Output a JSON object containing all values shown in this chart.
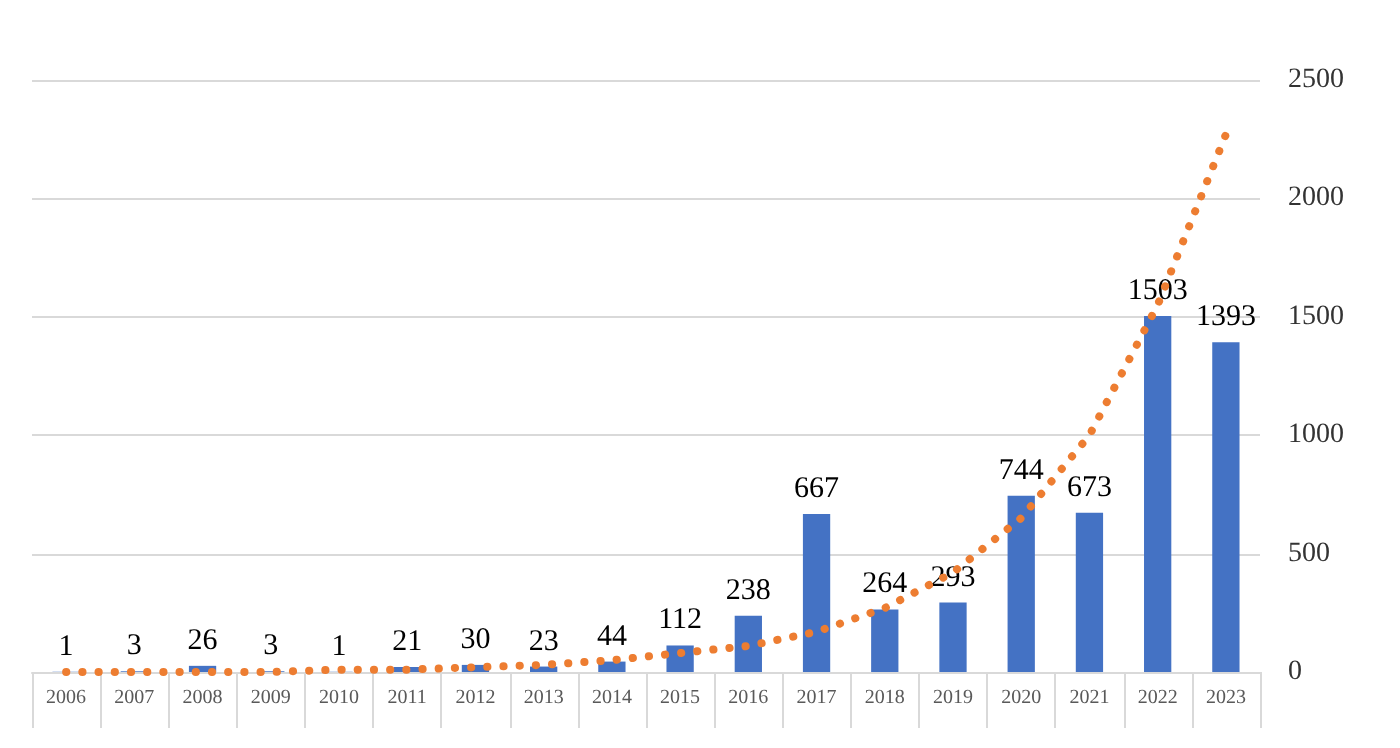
{
  "chart_data": {
    "type": "bar",
    "categories": [
      "2006",
      "2007",
      "2008",
      "2009",
      "2010",
      "2011",
      "2012",
      "2013",
      "2014",
      "2015",
      "2016",
      "2017",
      "2018",
      "2019",
      "2020",
      "2021",
      "2022",
      "2023"
    ],
    "series": [
      {
        "color": "#4472c4",
        "values": [
          1,
          3,
          26,
          3,
          1,
          21,
          30,
          23,
          44,
          112,
          238,
          667,
          264,
          293,
          744,
          673,
          1503,
          1393
        ],
        "value_labels": [
          "1",
          "3",
          "26",
          "3",
          "1",
          "21",
          "30",
          "23",
          "44",
          "112",
          "238",
          "667",
          "264",
          "293",
          "744",
          "673",
          "1503",
          "1393"
        ]
      },
      {
        "type": "line",
        "color": "#ed7d31",
        "line_style": "dotted",
        "marker": "none",
        "values": [
          0,
          0,
          0,
          0,
          10,
          10,
          20,
          30,
          50,
          80,
          110,
          170,
          270,
          420,
          650,
          1000,
          1550,
          2270
        ]
      }
    ],
    "ylim": [
      0,
      2500
    ],
    "yticks": [
      0,
      500,
      1000,
      1500,
      2000,
      2500
    ],
    "grid": "y"
  }
}
